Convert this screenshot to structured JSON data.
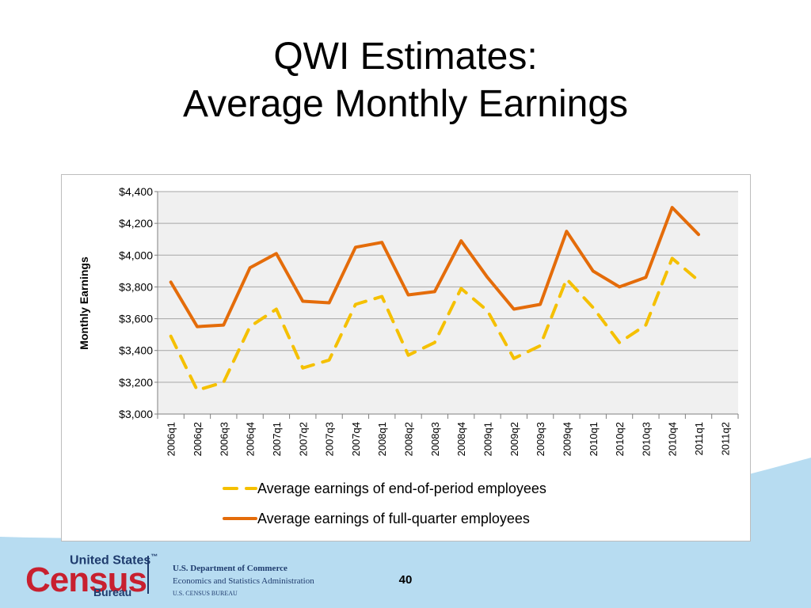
{
  "slide": {
    "title_line1": "QWI Estimates:",
    "title_line2": "Average Monthly Earnings",
    "page_number": "40"
  },
  "footer": {
    "logo_line1": "United States",
    "logo_tm": "™",
    "logo_word": "Census",
    "logo_line3": "Bureau",
    "dept_line1": "U.S. Department of Commerce",
    "dept_line2": "Economics and Statistics Administration",
    "dept_line3": "U.S. CENSUS BUREAU"
  },
  "colors": {
    "full_quarter": "#e46c0a",
    "end_of_period": "#f5c000",
    "plot_bg": "#f0f0f0",
    "grid": "#a6a6a6",
    "footer_wave": "#b7dcf1"
  },
  "chart_data": {
    "type": "line",
    "title": "",
    "xlabel": "",
    "ylabel": "Monthly Earnings",
    "ylim": [
      3000,
      4400
    ],
    "ytick_values": [
      3000,
      3200,
      3400,
      3600,
      3800,
      4000,
      4200,
      4400
    ],
    "ytick_labels": [
      "$3,000",
      "$3,200",
      "$3,400",
      "$3,600",
      "$3,800",
      "$4,000",
      "$4,200",
      "$4,400"
    ],
    "grid": true,
    "legend_position": "bottom",
    "categories": [
      "2006q1",
      "2006q2",
      "2006q3",
      "2006q4",
      "2007q1",
      "2007q2",
      "2007q3",
      "2007q4",
      "2008q1",
      "2008q2",
      "2008q3",
      "2008q4",
      "2009q1",
      "2009q2",
      "2009q3",
      "2009q4",
      "2010q1",
      "2010q2",
      "2010q3",
      "2010q4",
      "2011q1",
      "2011q2"
    ],
    "series": [
      {
        "name": "Average earnings of end-of-period employees",
        "style": "dashed",
        "values": [
          3490,
          3150,
          3200,
          3550,
          3660,
          3290,
          3340,
          3690,
          3740,
          3370,
          3450,
          3790,
          3650,
          3350,
          3430,
          3850,
          3670,
          3450,
          3560,
          3980,
          3840,
          null
        ]
      },
      {
        "name": "Average earnings of full-quarter employees",
        "style": "solid",
        "values": [
          3830,
          3550,
          3560,
          3920,
          4010,
          3710,
          3700,
          4050,
          4080,
          3750,
          3770,
          4090,
          3860,
          3660,
          3690,
          4150,
          3900,
          3800,
          3860,
          4300,
          4130,
          null
        ]
      }
    ]
  }
}
